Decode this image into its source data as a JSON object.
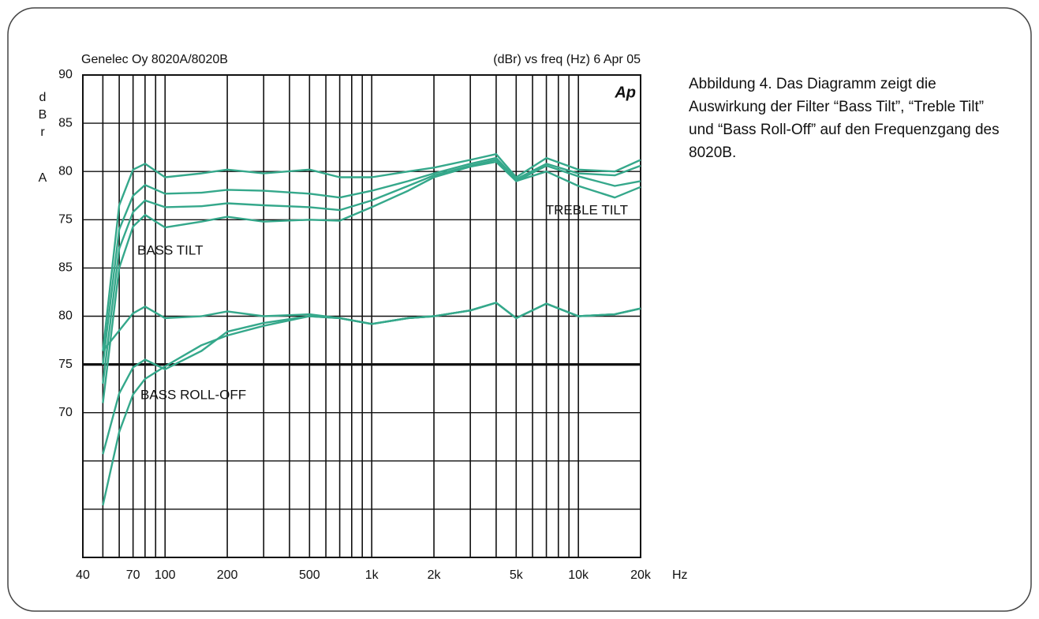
{
  "chart_data": {
    "type": "line",
    "title": "Genelec Oy 8020A/8020B",
    "subtitle": "(dBr) vs freq (Hz) 6 Apr 05",
    "logo": "Ap",
    "ylabel": [
      "d",
      "B",
      "r",
      "A"
    ],
    "x_unit": "Hz",
    "annotations": [
      "BASS TILT",
      "TREBLE TILT",
      "BASS ROLL-OFF"
    ],
    "log_x": true,
    "grid": true,
    "color": "#35a88b",
    "reference_line": 60,
    "xlim": [
      40,
      20000
    ],
    "xticks": [
      40,
      50,
      60,
      70,
      80,
      90,
      100,
      200,
      300,
      400,
      500,
      600,
      700,
      800,
      900,
      {
        "value": 1000,
        "label": "1k"
      },
      {
        "value": 2000,
        "label": "2k"
      },
      3000,
      4000,
      {
        "value": 5000,
        "label": "5k"
      },
      6000,
      7000,
      8000,
      9000,
      {
        "value": 10000,
        "label": "10k"
      },
      {
        "value": 20000,
        "label": "20k"
      }
    ],
    "xtick_labels_shown": [
      40,
      70,
      100,
      200,
      500,
      1000,
      2000,
      5000,
      10000,
      20000
    ],
    "ylim": [
      40,
      90
    ],
    "yticks": [
      90,
      85,
      80,
      75,
      {
        "value": 70,
        "label": "85"
      },
      {
        "value": 65,
        "label": "80"
      },
      {
        "value": 60,
        "label": "75"
      },
      {
        "value": 55,
        "label": "70"
      },
      {
        "value": 50,
        "label": null
      },
      {
        "value": 45,
        "label": null
      },
      {
        "value": 40,
        "label": null
      }
    ],
    "x": [
      50,
      60,
      70,
      80,
      100,
      150,
      200,
      300,
      500,
      700,
      1000,
      1500,
      2000,
      3000,
      4000,
      5000,
      7000,
      10000,
      15000,
      20000
    ],
    "series": [
      {
        "values": [
          61.4,
          76.5,
          80.2,
          80.8,
          79.4,
          79.8,
          80.2,
          79.8,
          80.2,
          79.4,
          79.4,
          80.0,
          80.4,
          81.2,
          81.8,
          79.4,
          81.4,
          80.2,
          80.0,
          81.2
        ]
      },
      {
        "values": [
          60.0,
          74.0,
          77.5,
          78.6,
          77.7,
          77.8,
          78.1,
          78.0,
          77.7,
          77.3,
          78.0,
          79.0,
          79.8,
          80.8,
          81.4,
          79.2,
          80.8,
          79.8,
          79.6,
          80.6
        ]
      },
      {
        "values": [
          58.0,
          72.0,
          75.8,
          77.0,
          76.3,
          76.4,
          76.7,
          76.5,
          76.3,
          76.0,
          77.0,
          78.5,
          79.6,
          80.6,
          81.2,
          79.0,
          80.6,
          79.5,
          78.5,
          79.0
        ]
      },
      {
        "values": [
          56.0,
          70.0,
          74.3,
          75.5,
          74.2,
          74.8,
          75.3,
          74.8,
          75.0,
          74.9,
          76.3,
          78.0,
          79.4,
          80.5,
          81.0,
          79.0,
          80.0,
          78.5,
          77.3,
          78.4
        ]
      },
      {
        "values": [
          61.4,
          63.5,
          65.3,
          66.0,
          64.8,
          65.0,
          65.5,
          65.0,
          65.2,
          64.8,
          64.2,
          64.8,
          65.0,
          65.6,
          66.4,
          64.8,
          66.3,
          65.0,
          65.2,
          65.8
        ]
      },
      {
        "values": [
          50.7,
          57.0,
          59.7,
          60.5,
          59.5,
          61.4,
          63.4,
          64.3,
          65.0,
          64.8,
          64.2,
          64.8,
          65.0,
          65.6,
          66.4,
          64.8,
          66.3,
          65.0,
          65.2,
          65.8
        ]
      },
      {
        "values": [
          45.4,
          53.0,
          56.9,
          58.5,
          59.8,
          62.0,
          63.0,
          64.0,
          65.0,
          64.8,
          64.2,
          64.8,
          65.0,
          65.6,
          66.4,
          64.8,
          66.3,
          65.0,
          65.2,
          65.8
        ]
      }
    ]
  },
  "caption": "Abbildung 4. Das Diagramm zeigt die Auswirkung der Filter “Bass Tilt”, “Treble Tilt” und “Bass Roll-Off” auf den Frequenzgang des 8020B."
}
